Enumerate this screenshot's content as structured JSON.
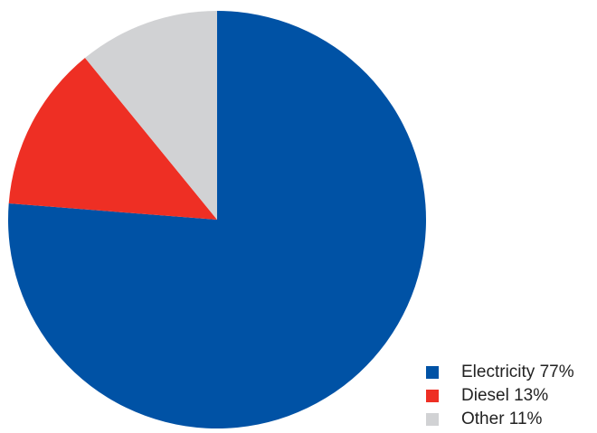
{
  "chart_data": {
    "type": "pie",
    "title": "",
    "slices": [
      {
        "label": "Electricity 77%",
        "name": "Electricity",
        "value": 77,
        "color": "#0052a5"
      },
      {
        "label": "Diesel 13%",
        "name": "Diesel",
        "value": 13,
        "color": "#ee2f24"
      },
      {
        "label": "Other 11%",
        "name": "Other",
        "value": 11,
        "color": "#d1d2d4"
      }
    ],
    "start_angle": "12 o'clock",
    "direction": "clockwise",
    "legend_position": "bottom-right"
  }
}
